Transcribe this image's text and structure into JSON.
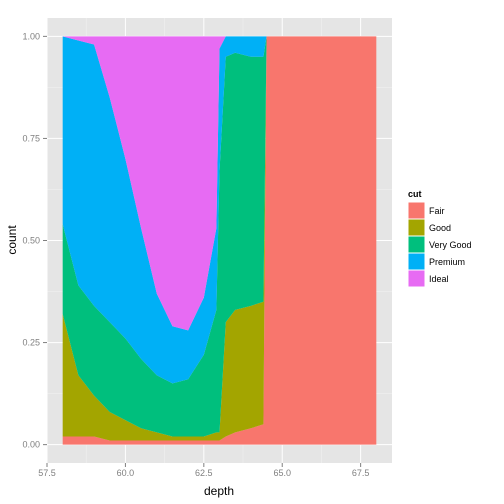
{
  "chart_data": {
    "type": "area",
    "stacking": "fill",
    "xlabel": "depth",
    "ylabel": "count",
    "xlim": [
      57.5,
      68.5
    ],
    "ylim": [
      0,
      1
    ],
    "x_ticks": [
      57.5,
      60.0,
      62.5,
      65.0,
      67.5
    ],
    "x_tick_labels": [
      "57.5",
      "60.0",
      "62.5",
      "65.0",
      "67.5"
    ],
    "y_ticks": [
      0,
      0.25,
      0.5,
      0.75,
      1
    ],
    "y_tick_labels": [
      "0.00",
      "0.25",
      "0.50",
      "0.75",
      "1.00"
    ],
    "grid": true,
    "legend": {
      "title": "cut",
      "position": "right",
      "entries": [
        {
          "name": "Fair",
          "color": "#F8766D"
        },
        {
          "name": "Good",
          "color": "#A3A500"
        },
        {
          "name": "Very Good",
          "color": "#00BF7D"
        },
        {
          "name": "Premium",
          "color": "#00B0F6"
        },
        {
          "name": "Ideal",
          "color": "#E76BF3"
        }
      ]
    },
    "x": [
      58.0,
      58.5,
      59.0,
      59.5,
      60.0,
      60.5,
      61.0,
      61.5,
      62.0,
      62.5,
      62.9,
      63.0,
      63.2,
      63.5,
      64.0,
      64.4,
      64.5,
      65.0,
      66.0,
      67.0,
      68.0
    ],
    "series": [
      {
        "name": "Fair",
        "values": [
          0.02,
          0.02,
          0.02,
          0.01,
          0.01,
          0.01,
          0.01,
          0.01,
          0.01,
          0.01,
          0.01,
          0.01,
          0.02,
          0.03,
          0.04,
          0.05,
          1.0,
          1.0,
          1.0,
          1.0,
          1.0
        ]
      },
      {
        "name": "Good",
        "values": [
          0.3,
          0.15,
          0.1,
          0.07,
          0.05,
          0.03,
          0.02,
          0.01,
          0.01,
          0.01,
          0.02,
          0.02,
          0.28,
          0.3,
          0.3,
          0.3,
          0.0,
          0.0,
          0.0,
          0.0,
          0.0
        ]
      },
      {
        "name": "Very Good",
        "values": [
          0.22,
          0.22,
          0.22,
          0.22,
          0.2,
          0.17,
          0.14,
          0.13,
          0.14,
          0.2,
          0.3,
          0.64,
          0.65,
          0.63,
          0.61,
          0.6,
          0.0,
          0.0,
          0.0,
          0.0,
          0.0
        ]
      },
      {
        "name": "Premium",
        "values": [
          0.46,
          0.6,
          0.64,
          0.55,
          0.44,
          0.32,
          0.2,
          0.14,
          0.12,
          0.14,
          0.2,
          0.3,
          0.05,
          0.04,
          0.05,
          0.05,
          0.0,
          0.0,
          0.0,
          0.0,
          0.0
        ]
      },
      {
        "name": "Ideal",
        "values": [
          0.0,
          0.01,
          0.02,
          0.15,
          0.3,
          0.47,
          0.63,
          0.71,
          0.72,
          0.64,
          0.47,
          0.03,
          0.0,
          0.0,
          0.0,
          0.0,
          0.0,
          0.0,
          0.0,
          0.0,
          0.0
        ]
      }
    ]
  }
}
